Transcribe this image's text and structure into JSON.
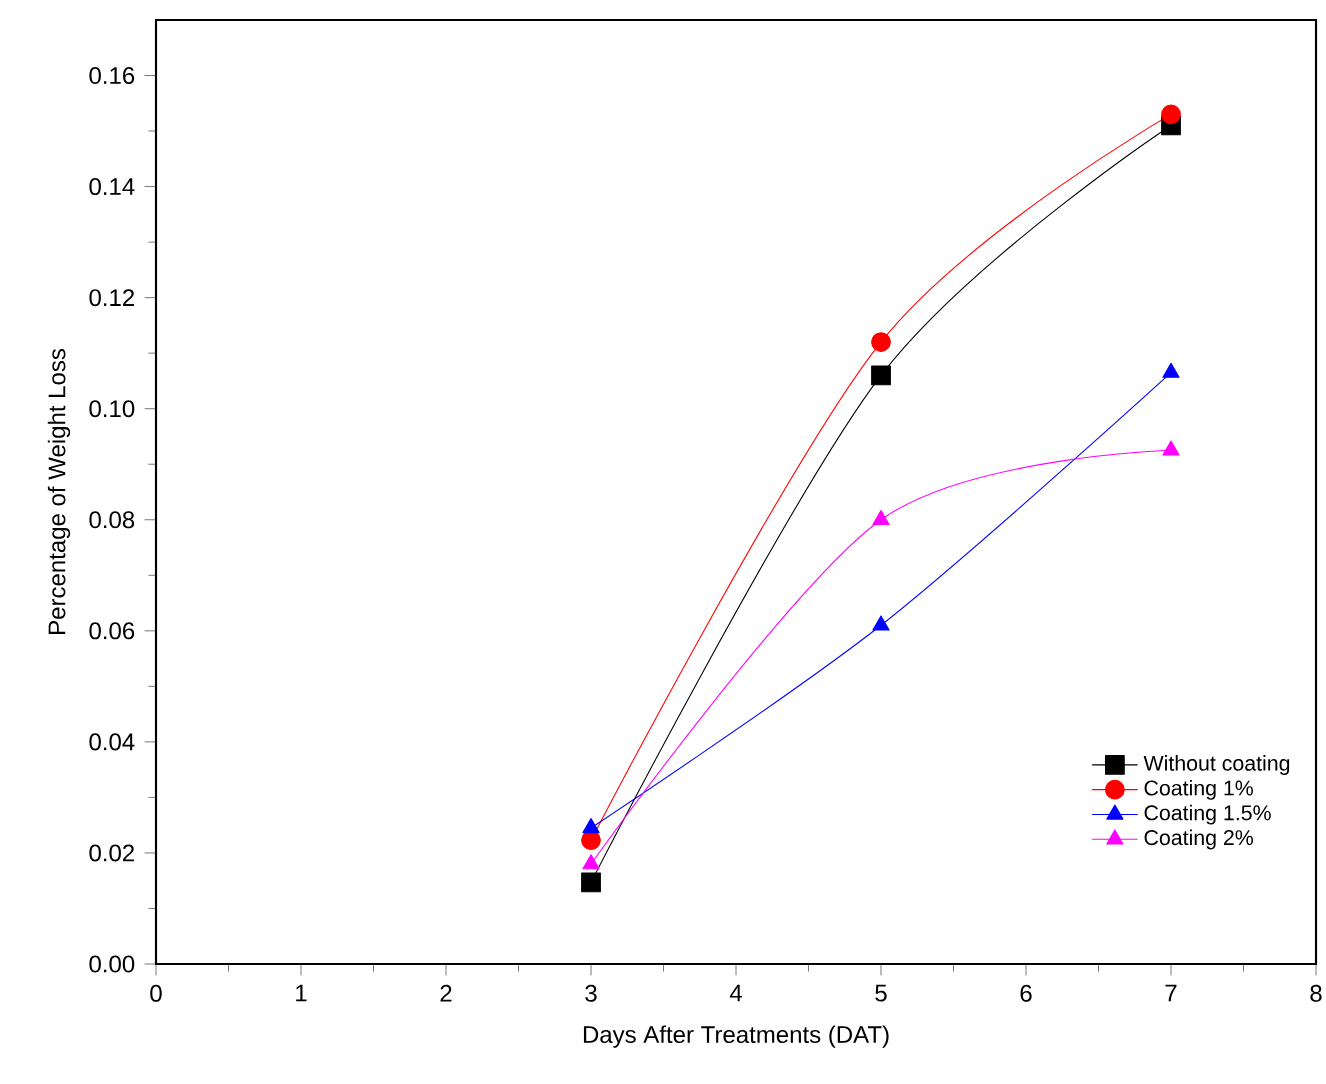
{
  "chart_data": {
    "type": "line",
    "xlabel": "Days After Treatments (DAT)",
    "ylabel": "Percentage of Weight Loss",
    "x": [
      3,
      5,
      7
    ],
    "series": [
      {
        "name": "Without coating",
        "color": "#000000",
        "marker": "square",
        "values": [
          0.0147,
          0.106,
          0.151
        ]
      },
      {
        "name": "Coating 1%",
        "color": "#ff0000",
        "marker": "circle",
        "values": [
          0.0223,
          0.112,
          0.153
        ]
      },
      {
        "name": "Coating 1.5%",
        "color": "#0000ff",
        "marker": "triangle",
        "values": [
          0.0245,
          0.061,
          0.1065
        ]
      },
      {
        "name": "Coating 2%",
        "color": "#ff00ff",
        "marker": "triangle down",
        "values": [
          0.018,
          0.08,
          0.0925
        ]
      }
    ],
    "xlim": [
      0,
      8
    ],
    "xticks": [
      0,
      1,
      2,
      3,
      4,
      5,
      6,
      7,
      8
    ],
    "ylim": [
      0,
      0.17
    ],
    "yticks": [
      {
        "value": 0,
        "label": "0.00"
      },
      {
        "value": 0.02,
        "label": "0.02"
      },
      {
        "value": 0.04,
        "label": "0.04"
      },
      {
        "value": 0.06,
        "label": "0.06"
      },
      {
        "value": 0.08,
        "label": "0.08"
      },
      {
        "value": 0.1,
        "label": "0.10"
      },
      {
        "value": 0.12,
        "label": "0.12"
      },
      {
        "value": 0.14,
        "label": "0.14"
      },
      {
        "value": 0.16,
        "label": "0.16"
      }
    ],
    "grid": false,
    "legend": "bottom right",
    "line_style": "solid"
  }
}
